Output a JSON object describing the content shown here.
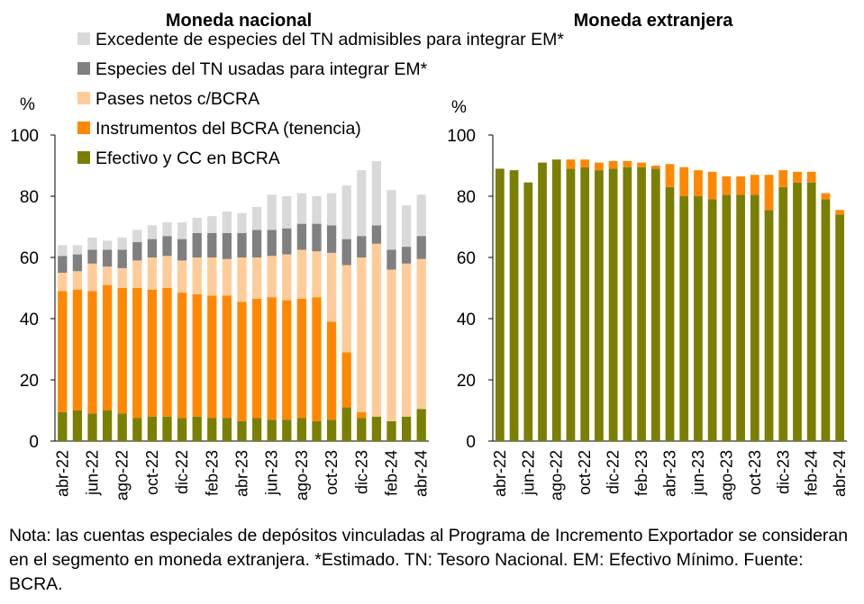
{
  "chart_data": [
    {
      "type": "bar",
      "stacked": true,
      "title": "Moneda nacional",
      "ylabel": "%",
      "ylim": [
        0,
        100
      ],
      "yticks": [
        "0",
        "20",
        "40",
        "60",
        "80",
        "100"
      ],
      "categories": [
        "abr-22",
        "may-22",
        "jun-22",
        "jul-22",
        "ago-22",
        "sep-22",
        "oct-22",
        "nov-22",
        "dic-22",
        "ene-23",
        "feb-23",
        "mar-23",
        "abr-23",
        "may-23",
        "jun-23",
        "jul-23",
        "ago-23",
        "sep-23",
        "oct-23",
        "nov-23",
        "dic-23",
        "ene-24",
        "feb-24",
        "mar-24",
        "abr-24"
      ],
      "xtick_labels": [
        "abr-22",
        "jun-22",
        "ago-22",
        "oct-22",
        "dic-22",
        "feb-23",
        "abr-23",
        "jun-23",
        "ago-23",
        "oct-23",
        "dic-23",
        "feb-24",
        "abr-24"
      ],
      "series": [
        {
          "name": "Efectivo y CC en BCRA",
          "color": "#7a7f00",
          "values": [
            9.5,
            10,
            9,
            10,
            9,
            7.5,
            8,
            8,
            7.5,
            8,
            7.5,
            7.5,
            6.5,
            7.5,
            7,
            7,
            7.5,
            6.5,
            7,
            11,
            7.5,
            8,
            6.5,
            8,
            10.5
          ]
        },
        {
          "name": "Instrumentos del BCRA (tenencia)",
          "color": "#ff8800",
          "values": [
            39.5,
            39.5,
            40,
            41,
            41,
            42.5,
            41.5,
            42,
            41,
            40,
            40,
            40,
            39,
            39,
            40,
            39,
            39,
            40.5,
            32,
            18,
            2,
            0,
            0,
            0,
            0
          ]
        },
        {
          "name": "Pases netos c/BCRA",
          "color": "#ffcc99",
          "values": [
            6,
            6,
            9,
            6,
            6.5,
            9,
            10.5,
            10.5,
            10.5,
            12,
            12.5,
            12,
            14.5,
            13.5,
            13.5,
            15,
            16,
            15,
            22.5,
            28.5,
            50.5,
            56.5,
            49.5,
            50,
            49
          ]
        },
        {
          "name": "Especies del TN usadas para integrar EM*",
          "color": "#808080",
          "values": [
            5.5,
            5.5,
            4.5,
            5.5,
            6,
            6,
            6,
            6.5,
            7,
            8,
            8,
            8.5,
            8,
            9,
            8.5,
            8.5,
            8.5,
            9,
            9,
            8.5,
            7,
            6,
            6.5,
            5.5,
            7.5
          ]
        },
        {
          "name": "Excedente de especies del TN admisibles para integrar EM*",
          "color": "#d9d9d9",
          "values": [
            3.5,
            3,
            4,
            3,
            4,
            4,
            4.5,
            4.5,
            5.5,
            5,
            5.5,
            7,
            6.5,
            7.5,
            11.5,
            10.5,
            10,
            9,
            10.5,
            17.5,
            21.5,
            21,
            19.5,
            13.5,
            13.5
          ]
        }
      ],
      "legend": "top"
    },
    {
      "type": "bar",
      "stacked": true,
      "title": "Moneda extranjera",
      "ylabel": "%",
      "ylim": [
        0,
        100
      ],
      "yticks": [
        "0",
        "20",
        "40",
        "60",
        "80",
        "100"
      ],
      "categories": [
        "abr-22",
        "may-22",
        "jun-22",
        "jul-22",
        "ago-22",
        "sep-22",
        "oct-22",
        "nov-22",
        "dic-22",
        "ene-23",
        "feb-23",
        "mar-23",
        "abr-23",
        "may-23",
        "jun-23",
        "jul-23",
        "ago-23",
        "sep-23",
        "oct-23",
        "nov-23",
        "dic-23",
        "ene-24",
        "feb-24",
        "mar-24",
        "abr-24"
      ],
      "xtick_labels": [
        "abr-22",
        "jun-22",
        "ago-22",
        "oct-22",
        "dic-22",
        "feb-23",
        "abr-23",
        "jun-23",
        "ago-23",
        "oct-23",
        "dic-23",
        "feb-24",
        "abr-24"
      ],
      "series": [
        {
          "name": "Efectivo y CC en BCRA",
          "color": "#7a7f00",
          "values": [
            89,
            88.5,
            84.5,
            91,
            92,
            89,
            89.5,
            88.5,
            89,
            89.5,
            89.5,
            89,
            83,
            80,
            80,
            79,
            80.5,
            80.5,
            80.5,
            75.5,
            83,
            84.5,
            84.5,
            79,
            74
          ]
        },
        {
          "name": "Instrumentos del BCRA (tenencia)",
          "color": "#ff8800",
          "values": [
            0,
            0,
            0,
            0,
            0,
            3,
            2.5,
            2.5,
            2.5,
            2,
            1.5,
            1,
            7.5,
            9.5,
            8.5,
            9,
            6,
            6,
            6.5,
            11.5,
            5.5,
            3.5,
            3.5,
            2,
            1.5
          ]
        }
      ]
    }
  ],
  "note": "Nota: las cuentas especiales de depósitos vinculadas al Programa de Incremento Exportador se consideran en el segmento en moneda extranjera. *Estimado. TN: Tesoro Nacional. EM: Efectivo Mínimo. Fuente: BCRA."
}
